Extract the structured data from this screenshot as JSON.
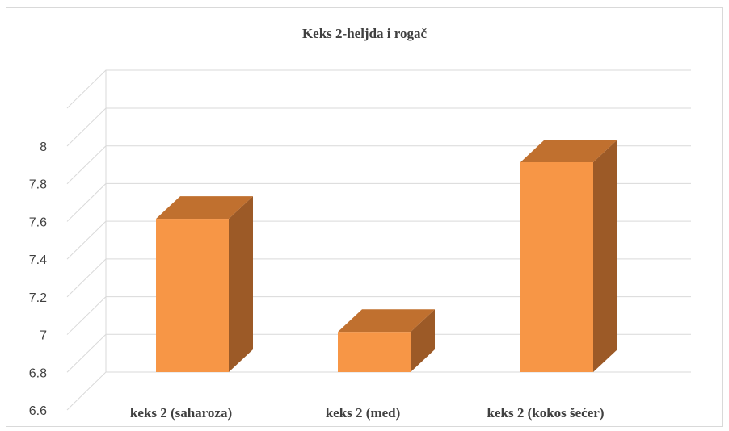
{
  "chart_data": {
    "type": "bar",
    "title": "Keks 2-heljda i rogač",
    "categories": [
      "keks 2 (saharoza)",
      "keks 2 (med)",
      "keks 2 (kokos šećer)"
    ],
    "values": [
      7.7,
      7.1,
      8.0
    ],
    "ylim": [
      6.6,
      8.0
    ],
    "yticks": [
      "6.6",
      "6.8",
      "7",
      "7.2",
      "7.4",
      "7.6",
      "7.8",
      "8"
    ],
    "xlabel": "",
    "ylabel": "",
    "grid": true,
    "legend": "none",
    "colors": {
      "front": "#f79646",
      "top": "#c0702f",
      "side": "#9c5a27"
    }
  }
}
